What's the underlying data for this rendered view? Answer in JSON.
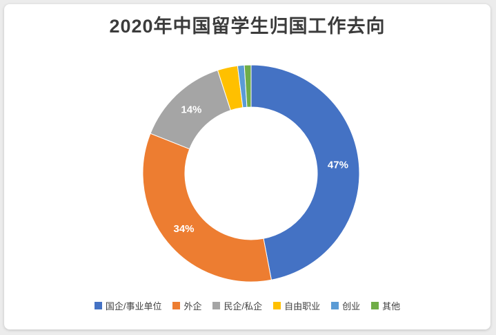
{
  "chart_data": {
    "type": "pie",
    "donut": true,
    "title": "2020年中国留学生归国工作去向",
    "start_angle_deg": 0,
    "direction": "clockwise",
    "categories": [
      "国企/事业单位",
      "外企",
      "民企/私企",
      "自由职业",
      "创业",
      "其他"
    ],
    "values": [
      47,
      34,
      14,
      3,
      1,
      1
    ],
    "labels": [
      "47%",
      "34%",
      "14%",
      "",
      "",
      ""
    ],
    "colors": [
      "#4472C4",
      "#ED7D31",
      "#A5A5A5",
      "#FFC000",
      "#5B9BD5",
      "#70AD47"
    ],
    "legend_position": "bottom",
    "background": "#ffffff"
  }
}
